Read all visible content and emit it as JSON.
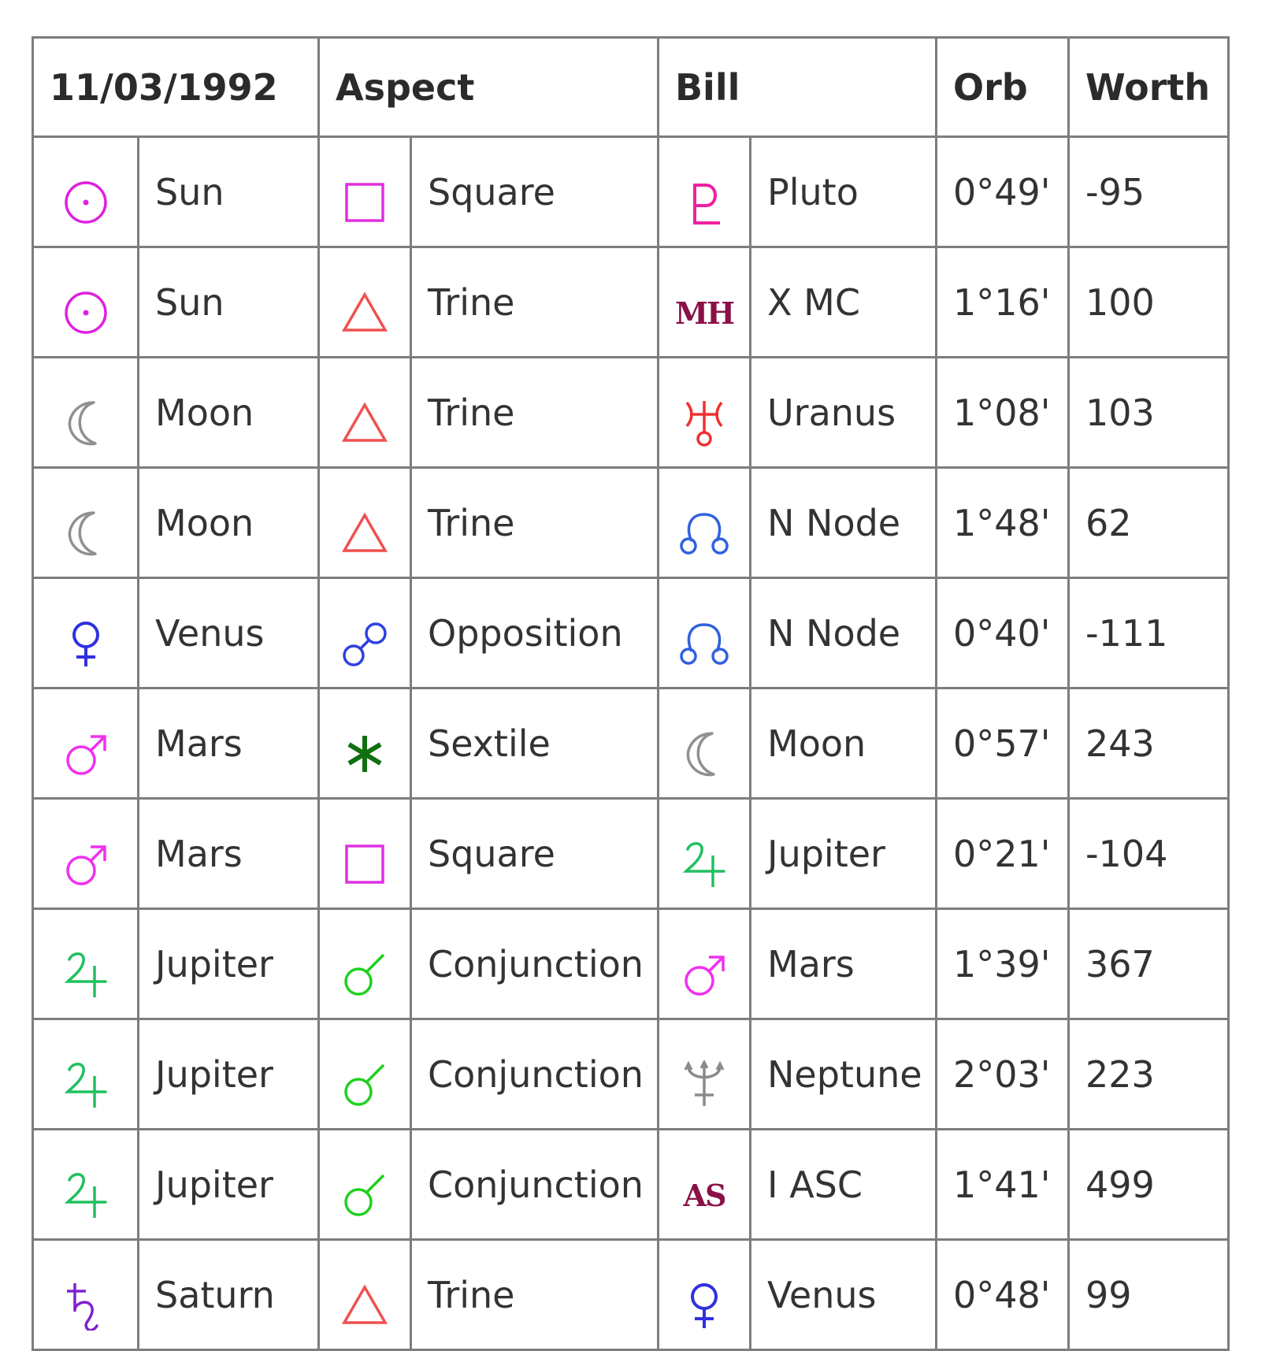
{
  "header": {
    "date": "11/03/1992",
    "aspect": "Aspect",
    "bill": "Bill",
    "orb": "Orb",
    "worth": "Worth"
  },
  "colors": {
    "sun": "#e020e0",
    "moon": "#909090",
    "venus": "#3030e0",
    "mars": "#f030f0",
    "jupiter": "#20c060",
    "saturn": "#8020d0",
    "pluto": "#f020a0",
    "uranus": "#f03030",
    "node": "#3060e0",
    "neptune": "#8a8a8a",
    "angle": "#8a1048",
    "square": "#e030e0",
    "trine": "#f05050",
    "opposition": "#3040e0",
    "sextile": "#107010",
    "conjunction": "#20d020"
  },
  "rows": [
    {
      "p1_icon": "sun-icon",
      "p1": "Sun",
      "asp_icon": "square-icon",
      "asp": "Square",
      "p2_icon": "pluto-icon",
      "p2": "Pluto",
      "orb": "0°49'",
      "worth": "-95"
    },
    {
      "p1_icon": "sun-icon",
      "p1": "Sun",
      "asp_icon": "trine-icon",
      "asp": "Trine",
      "p2_icon": "midheaven-icon",
      "p2_glyph": "MH",
      "p2": "X MC",
      "orb": "1°16'",
      "worth": "100"
    },
    {
      "p1_icon": "moon-icon",
      "p1": "Moon",
      "asp_icon": "trine-icon",
      "asp": "Trine",
      "p2_icon": "uranus-icon",
      "p2": "Uranus",
      "orb": "1°08'",
      "worth": "103"
    },
    {
      "p1_icon": "moon-icon",
      "p1": "Moon",
      "asp_icon": "trine-icon",
      "asp": "Trine",
      "p2_icon": "north-node-icon",
      "p2": "N Node",
      "orb": "1°48'",
      "worth": "62"
    },
    {
      "p1_icon": "venus-icon",
      "p1": "Venus",
      "asp_icon": "opposition-icon",
      "asp": "Opposition",
      "p2_icon": "north-node-icon",
      "p2": "N Node",
      "orb": "0°40'",
      "worth": "-111"
    },
    {
      "p1_icon": "mars-icon",
      "p1": "Mars",
      "asp_icon": "sextile-icon",
      "asp": "Sextile",
      "p2_icon": "moon-icon",
      "p2": "Moon",
      "orb": "0°57'",
      "worth": "243"
    },
    {
      "p1_icon": "mars-icon",
      "p1": "Mars",
      "asp_icon": "square-icon",
      "asp": "Square",
      "p2_icon": "jupiter-icon",
      "p2": "Jupiter",
      "orb": "0°21'",
      "worth": "-104"
    },
    {
      "p1_icon": "jupiter-icon",
      "p1": "Jupiter",
      "asp_icon": "conjunction-icon",
      "asp": "Conjunction",
      "p2_icon": "mars-icon",
      "p2": "Mars",
      "orb": "1°39'",
      "worth": "367"
    },
    {
      "p1_icon": "jupiter-icon",
      "p1": "Jupiter",
      "asp_icon": "conjunction-icon",
      "asp": "Conjunction",
      "p2_icon": "neptune-icon",
      "p2": "Neptune",
      "orb": "2°03'",
      "worth": "223"
    },
    {
      "p1_icon": "jupiter-icon",
      "p1": "Jupiter",
      "asp_icon": "conjunction-icon",
      "asp": "Conjunction",
      "p2_icon": "ascendant-icon",
      "p2_glyph": "AS",
      "p2": "I ASC",
      "orb": "1°41'",
      "worth": "499"
    },
    {
      "p1_icon": "saturn-icon",
      "p1": "Saturn",
      "asp_icon": "trine-icon",
      "asp": "Trine",
      "p2_icon": "venus-icon",
      "p2": "Venus",
      "orb": "0°48'",
      "worth": "99"
    }
  ]
}
